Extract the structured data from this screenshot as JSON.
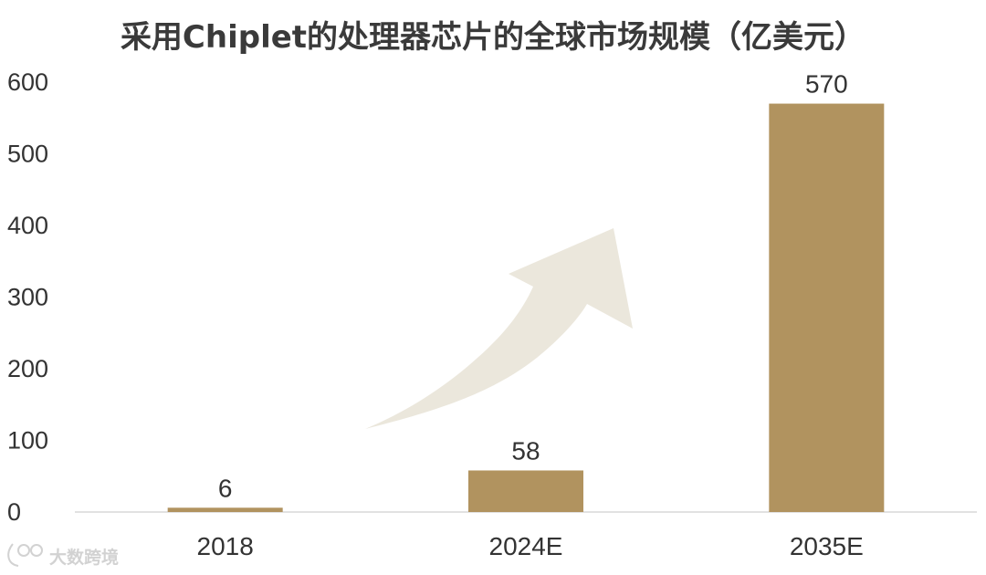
{
  "chart_data": {
    "type": "bar",
    "title": "采用Chiplet的处理器芯片的全球市场规模（亿美元）",
    "categories": [
      "2018",
      "2024E",
      "2035E"
    ],
    "values": [
      6,
      58,
      570
    ],
    "data_labels": [
      "6",
      "58",
      "570"
    ],
    "ylim": [
      0,
      600
    ],
    "yticks": [
      0,
      100,
      200,
      300,
      400,
      500,
      600
    ],
    "xlabel": "",
    "ylabel": "",
    "grid": false,
    "legend": "none",
    "bar_color": "#b1935f",
    "arrow_color": "#ebe7dc",
    "annotations": [
      "rising-arrow"
    ]
  },
  "watermark": {
    "text": "大数跨境",
    "icon": "logo-icon",
    "color": "#d2d2d2"
  }
}
